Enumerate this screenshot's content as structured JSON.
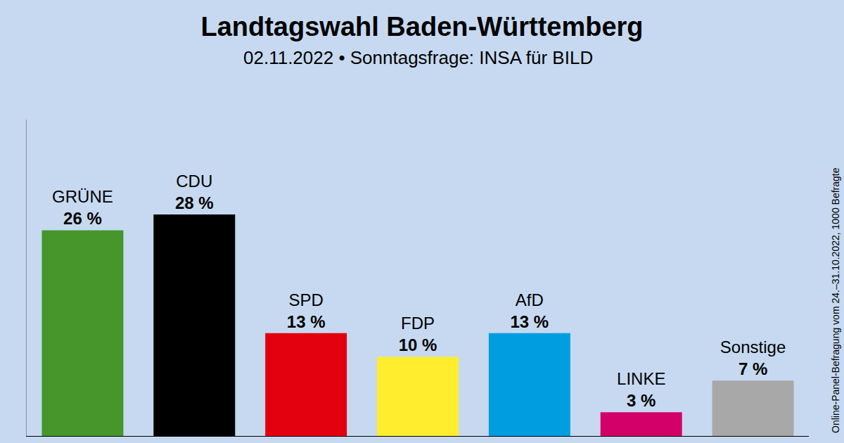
{
  "chart_data": {
    "type": "bar",
    "title": "Landtagswahl Baden-Württemberg",
    "subtitle": "02.11.2022 • Sonntagsfrage: INSA für BILD",
    "note": "Online-Panel-Befragung vom 24.–31.10.2022, 1000 Befragte",
    "categories": [
      "GRÜNE",
      "CDU",
      "SPD",
      "FDP",
      "AfD",
      "LINKE",
      "Sonstige"
    ],
    "values": [
      26,
      28,
      13,
      10,
      13,
      3,
      7
    ],
    "value_labels": [
      "26 %",
      "28 %",
      "13 %",
      "10 %",
      "13 %",
      "3 %",
      "7 %"
    ],
    "colors": [
      "#46962b",
      "#000000",
      "#e3000f",
      "#ffed2e",
      "#009ee0",
      "#d4006a",
      "#a8a8a8"
    ],
    "ylim": [
      0,
      40
    ],
    "yticks": [],
    "grid": false,
    "data_labels": true,
    "tick_labels": false
  }
}
